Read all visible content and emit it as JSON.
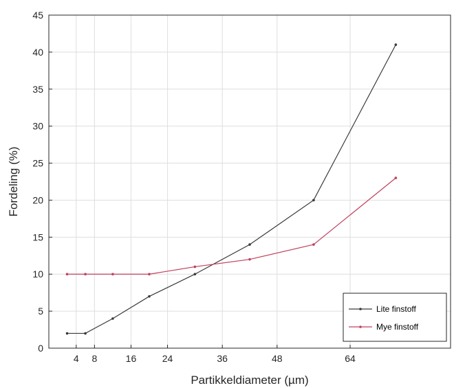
{
  "chart_data": {
    "type": "line",
    "xlabel": "Partikkeldiameter (µm)",
    "ylabel": "Fordeling (%)",
    "xlim": [
      -2,
      86
    ],
    "ylim": [
      0,
      45
    ],
    "x_ticks": [
      4,
      8,
      16,
      24,
      36,
      48,
      64
    ],
    "y_ticks": [
      0,
      5,
      10,
      15,
      20,
      25,
      30,
      35,
      40,
      45
    ],
    "grid": true,
    "legend_position": "bottom-right",
    "series": [
      {
        "name": "Lite finstoff",
        "color": "#3a3a3a",
        "x": [
          2,
          6,
          12,
          20,
          30,
          42,
          56,
          74
        ],
        "y": [
          2,
          2,
          4,
          7,
          10,
          14,
          20,
          41
        ]
      },
      {
        "name": "Mye finstoff",
        "color": "#c0405e",
        "x": [
          2,
          6,
          12,
          20,
          30,
          42,
          56,
          74
        ],
        "y": [
          10,
          10,
          10,
          10,
          11,
          12,
          14,
          23
        ]
      }
    ]
  }
}
